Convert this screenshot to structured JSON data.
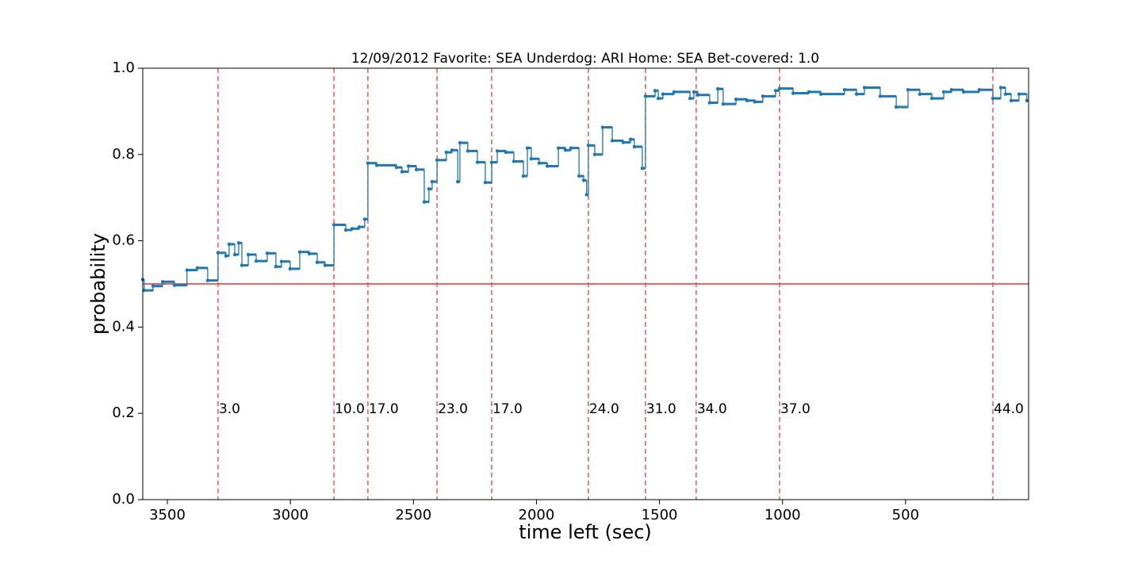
{
  "chart_data": {
    "type": "step",
    "title": "12/09/2012 Favorite: SEA Underdog: ARI Home: SEA Bet-covered: 1.0",
    "xlabel": "time left (sec)",
    "ylabel": "probability",
    "xlim": [
      3600,
      0
    ],
    "ylim": [
      0,
      1
    ],
    "xticks": [
      3500,
      3000,
      2500,
      2000,
      1500,
      1000,
      500
    ],
    "yticks": [
      {
        "value": 0,
        "label": "0.0"
      },
      0.2,
      0.4,
      0.6,
      0.8,
      {
        "value": 1,
        "label": "1.0"
      }
    ],
    "series": [
      {
        "color": "#1f77b4",
        "x": [
          3600,
          3594,
          3558,
          3519,
          3471,
          3420,
          3378,
          3336,
          3294,
          3262,
          3249,
          3226,
          3210,
          3197,
          3171,
          3139,
          3094,
          3059,
          3036,
          3001,
          2962,
          2923,
          2891,
          2859,
          2823,
          2775,
          2749,
          2720,
          2698,
          2685,
          2649,
          2569,
          2546,
          2520,
          2488,
          2456,
          2437,
          2424,
          2404,
          2366,
          2343,
          2320,
          2311,
          2279,
          2240,
          2208,
          2182,
          2159,
          2124,
          2092,
          2053,
          2037,
          2021,
          1989,
          1956,
          1911,
          1882,
          1860,
          1827,
          1808,
          1796,
          1789,
          1763,
          1731,
          1692,
          1647,
          1618,
          1602,
          1570,
          1557,
          1518,
          1505,
          1486,
          1441,
          1376,
          1360,
          1344,
          1296,
          1263,
          1241,
          1189,
          1144,
          1112,
          1080,
          1028,
          1012,
          957,
          893,
          844,
          748,
          699,
          667,
          603,
          538,
          490,
          442,
          393,
          345,
          313,
          264,
          200,
          145,
          113,
          94,
          71,
          39,
          7
        ],
        "values": [
          0.51,
          0.485,
          0.495,
          0.505,
          0.497,
          0.532,
          0.537,
          0.508,
          0.572,
          0.565,
          0.592,
          0.568,
          0.595,
          0.543,
          0.568,
          0.553,
          0.571,
          0.54,
          0.552,
          0.535,
          0.574,
          0.57,
          0.55,
          0.543,
          0.637,
          0.625,
          0.628,
          0.632,
          0.65,
          0.78,
          0.775,
          0.77,
          0.76,
          0.773,
          0.765,
          0.69,
          0.72,
          0.737,
          0.787,
          0.805,
          0.81,
          0.737,
          0.827,
          0.808,
          0.782,
          0.735,
          0.782,
          0.808,
          0.805,
          0.784,
          0.75,
          0.815,
          0.79,
          0.78,
          0.773,
          0.815,
          0.81,
          0.815,
          0.75,
          0.74,
          0.707,
          0.821,
          0.8,
          0.863,
          0.832,
          0.828,
          0.835,
          0.818,
          0.768,
          0.935,
          0.948,
          0.93,
          0.94,
          0.945,
          0.93,
          0.945,
          0.938,
          0.92,
          0.952,
          0.917,
          0.928,
          0.925,
          0.922,
          0.935,
          0.948,
          0.953,
          0.942,
          0.945,
          0.94,
          0.95,
          0.94,
          0.955,
          0.935,
          0.91,
          0.95,
          0.94,
          0.93,
          0.945,
          0.95,
          0.945,
          0.95,
          0.93,
          0.955,
          0.94,
          0.925,
          0.94,
          0.925
        ]
      }
    ],
    "hline": {
      "value": 0.5,
      "color": "#e8312a"
    },
    "vlines": {
      "color": "#f04a45",
      "x": [
        3294,
        2823,
        2685,
        2404,
        2182,
        1789,
        1557,
        1351,
        1012,
        145
      ],
      "labels": [
        "3.0",
        "10.0",
        "17.0",
        "23.0",
        "17.0",
        "24.0",
        "31.0",
        "34.0",
        "37.0",
        "44.0"
      ]
    }
  }
}
